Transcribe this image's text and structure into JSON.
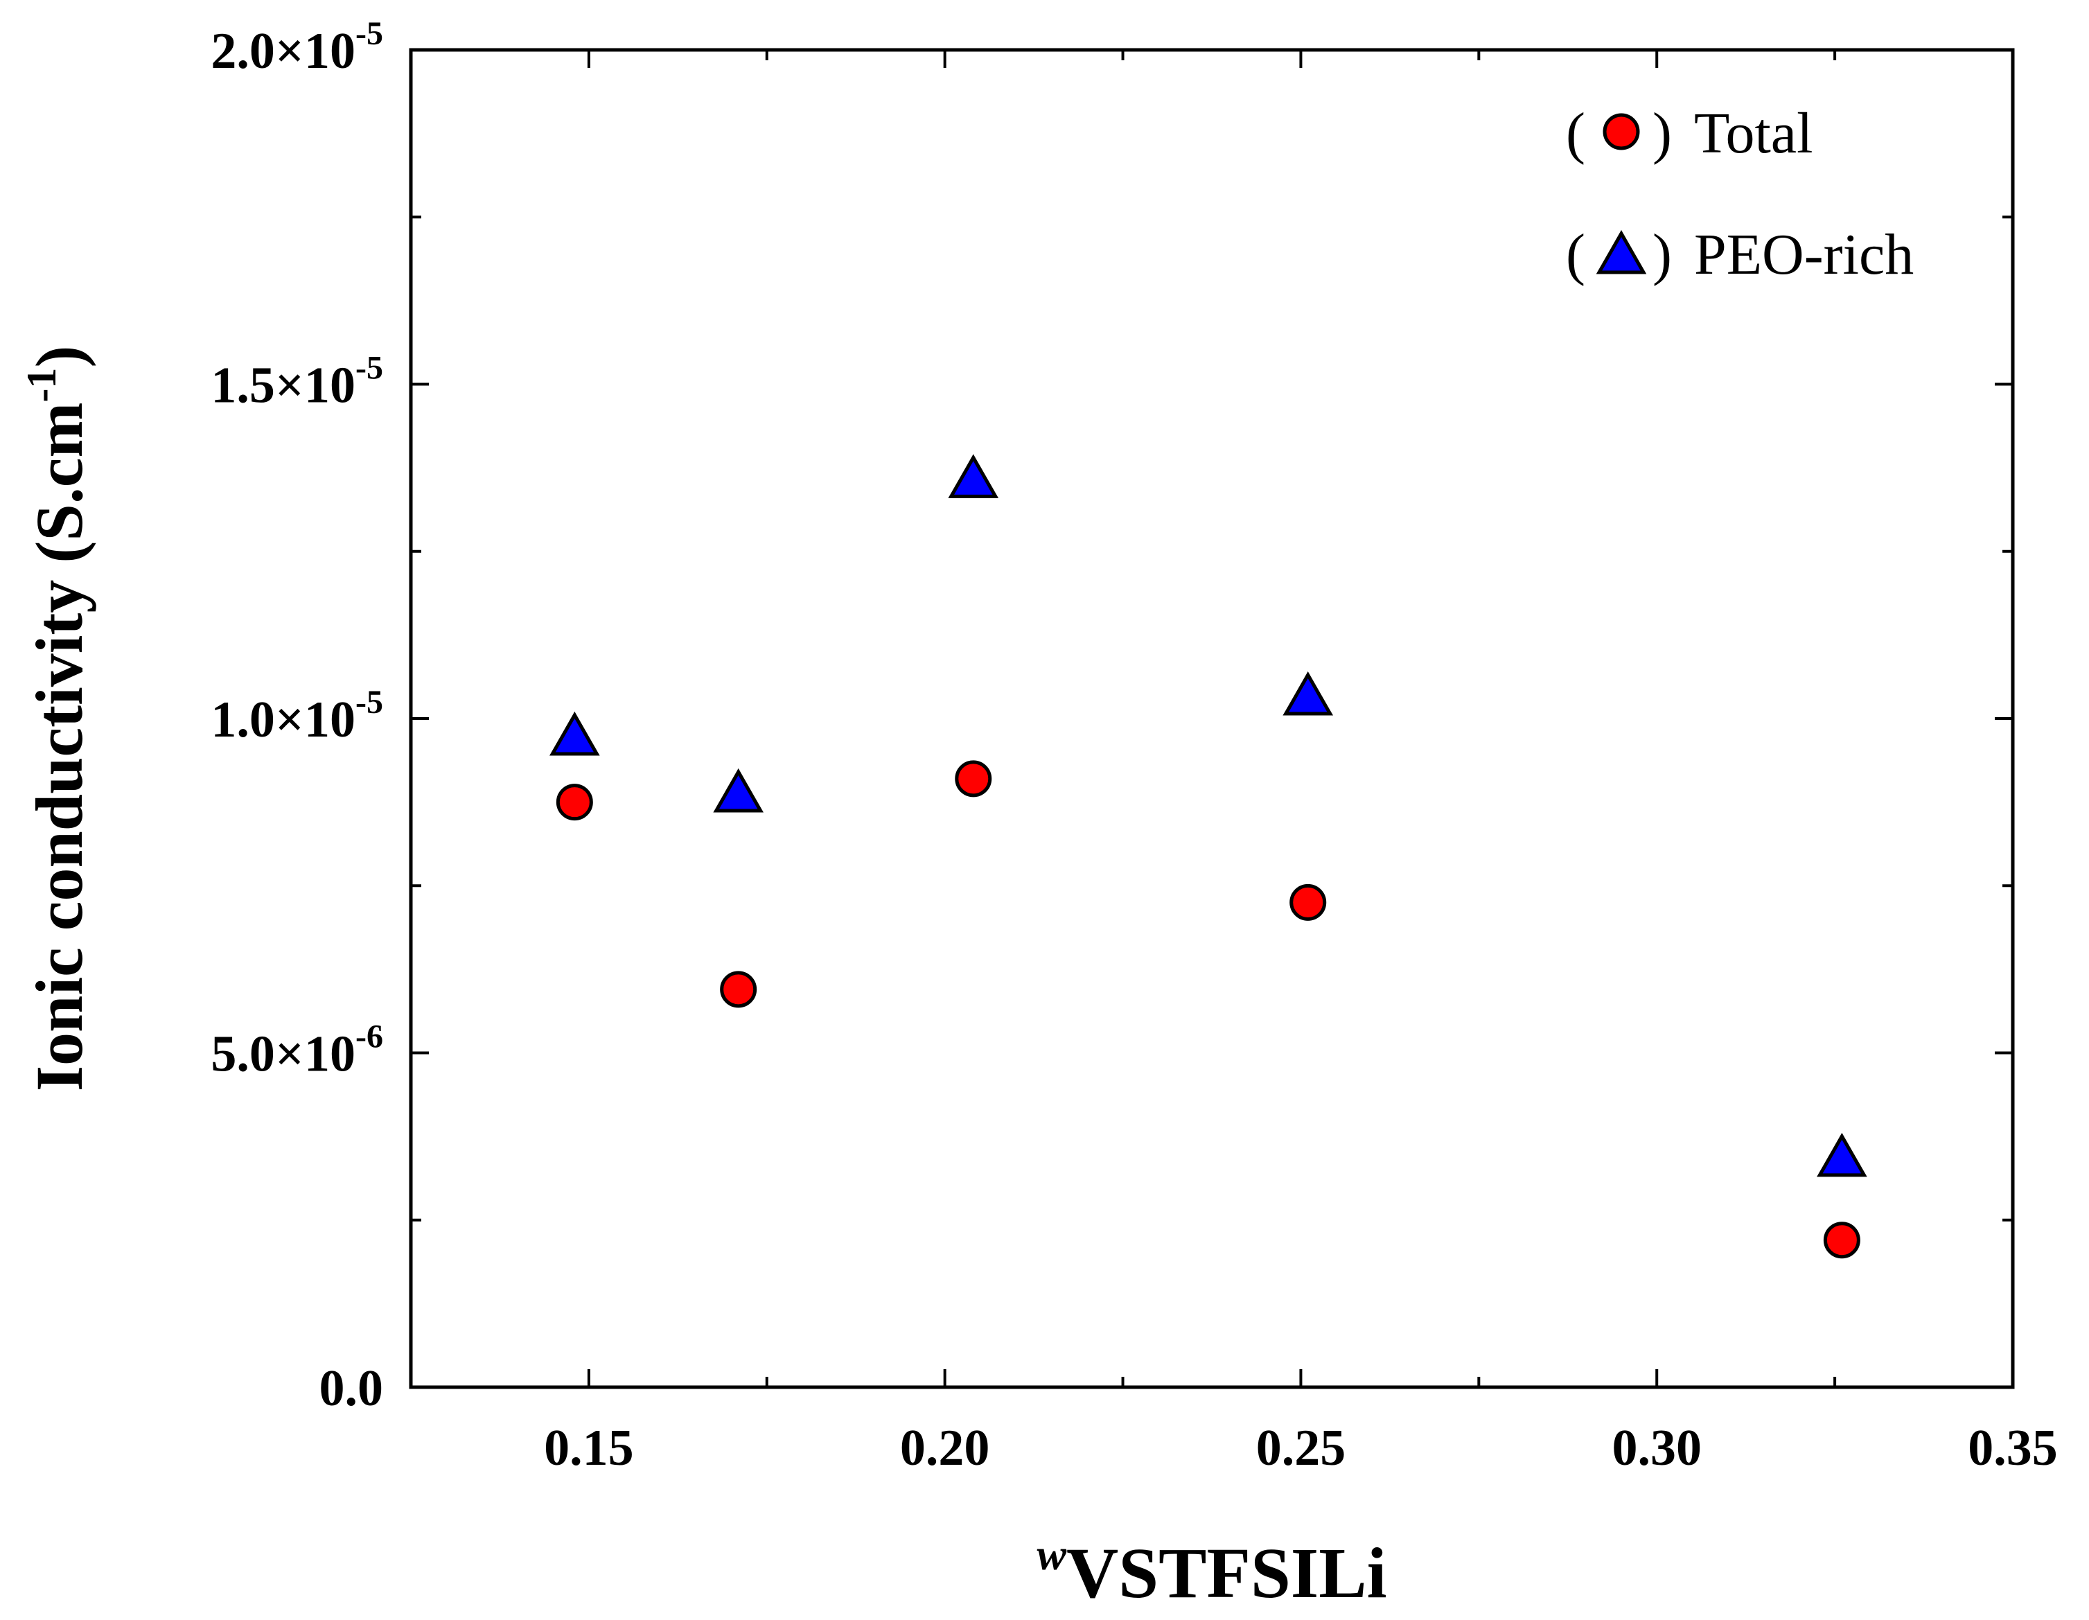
{
  "chart_data": {
    "type": "scatter",
    "title": "",
    "xlabel": {
      "superscript": "w",
      "main": "VSTFSILi"
    },
    "ylabel": {
      "main": "Ionic conductivity (S.cm",
      "superscript": "-1",
      "close": ")"
    },
    "xlim": [
      0.125,
      0.35
    ],
    "ylim": [
      0,
      2e-05
    ],
    "x_ticks": [
      {
        "value": 0.15,
        "label": "0.15"
      },
      {
        "value": 0.2,
        "label": "0.20"
      },
      {
        "value": 0.25,
        "label": "0.25"
      },
      {
        "value": 0.3,
        "label": "0.30"
      },
      {
        "value": 0.35,
        "label": "0.35"
      }
    ],
    "x_minor_ticks": [
      0.125,
      0.175,
      0.225,
      0.275,
      0.325
    ],
    "y_ticks": [
      {
        "value": 0,
        "mantissa": "0.0",
        "exponent": ""
      },
      {
        "value": 5e-06,
        "mantissa": "5.0×10",
        "exponent": "-6"
      },
      {
        "value": 1e-05,
        "mantissa": "1.0×10",
        "exponent": "-5"
      },
      {
        "value": 1.5e-05,
        "mantissa": "1.5×10",
        "exponent": "-5"
      },
      {
        "value": 2e-05,
        "mantissa": "2.0×10",
        "exponent": "-5"
      }
    ],
    "y_minor_ticks": [
      2.5e-06,
      7.5e-06,
      1.25e-05,
      1.75e-05
    ],
    "series": [
      {
        "name": "Total",
        "marker": "circle",
        "color": "#ff0000",
        "x": [
          0.148,
          0.171,
          0.204,
          0.251,
          0.326
        ],
        "y": [
          8.75e-06,
          5.95e-06,
          9.1e-06,
          7.25e-06,
          2.2e-06
        ]
      },
      {
        "name": "PEO-rich",
        "marker": "triangle",
        "color": "#0000ff",
        "x": [
          0.148,
          0.171,
          0.204,
          0.251,
          0.326
        ],
        "y": [
          9.7e-06,
          8.85e-06,
          1.355e-05,
          1.03e-05,
          3.4e-06
        ]
      }
    ],
    "legend": {
      "position": "top-right",
      "entries": [
        {
          "label": "Total",
          "marker": "circle",
          "color": "#ff0000"
        },
        {
          "label": "PEO-rich",
          "marker": "triangle",
          "color": "#0000ff"
        }
      ]
    },
    "grid": false
  }
}
